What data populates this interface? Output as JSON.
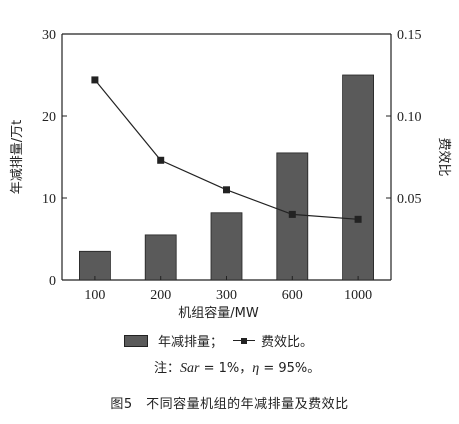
{
  "chart_data": {
    "type": "bar+line",
    "categories": [
      "100",
      "200",
      "300",
      "600",
      "1000"
    ],
    "series": [
      {
        "name": "年减排量",
        "kind": "bar",
        "axis": "left",
        "values": [
          3.5,
          5.5,
          8.2,
          15.5,
          25.0
        ],
        "color": "#5a5a5a"
      },
      {
        "name": "费效比",
        "kind": "line",
        "axis": "right",
        "marker": "square",
        "values": [
          0.122,
          0.073,
          0.055,
          0.04,
          0.037
        ],
        "color": "#222222"
      }
    ],
    "xlabel": "机组容量/MW",
    "ylabel_left": "年减排量/万t",
    "ylabel_right": "费效比",
    "ylim_left": [
      0,
      30
    ],
    "ylim_right": [
      0,
      0.15
    ],
    "yticks_left": [
      "0",
      "10",
      "20",
      "30"
    ],
    "yticks_right": [
      "0.05",
      "0.10",
      "0.15"
    ],
    "grid": false,
    "legend_placement": "bottom"
  },
  "legend": {
    "bar_label": "年减排量；",
    "line_label": "费效比。"
  },
  "note": {
    "prefix": "注：",
    "sar": "Sar",
    "sar_value": " = 1%，",
    "eta": "η",
    "eta_value": " = 95%。"
  },
  "caption": "图5　不同容量机组的年减排量及费效比"
}
